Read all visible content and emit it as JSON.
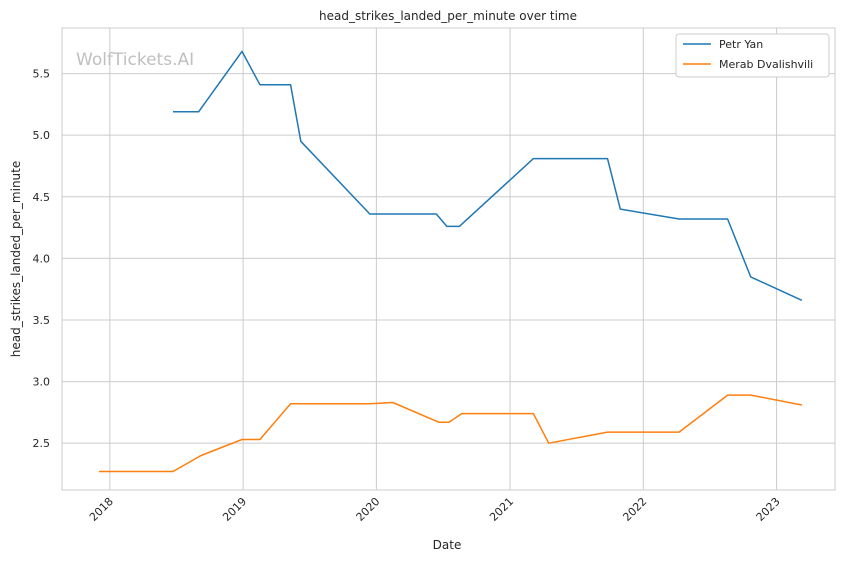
{
  "chart_data": {
    "type": "line",
    "title": "head_strikes_landed_per_minute over time",
    "xlabel": "Date",
    "ylabel": "head_strikes_landed_per_minute",
    "xlim": [
      "2017-08-23",
      "2023-06-10"
    ],
    "ylim": [
      2.12,
      5.87
    ],
    "xticks": [
      "2018",
      "2019",
      "2020",
      "2021",
      "2022",
      "2023"
    ],
    "yticks": [
      "2.5",
      "3.0",
      "3.5",
      "4.0",
      "4.5",
      "5.0",
      "5.5"
    ],
    "grid": true,
    "legend_position": "top-right",
    "watermark": "WolfTickets.AI",
    "series": [
      {
        "name": "Petr Yan",
        "color": "#1f77b4",
        "points": [
          [
            "2018-06-23",
            5.19
          ],
          [
            "2018-09-01",
            5.19
          ],
          [
            "2018-12-29",
            5.68
          ],
          [
            "2019-02-16",
            5.41
          ],
          [
            "2019-05-11",
            5.41
          ],
          [
            "2019-06-08",
            4.95
          ],
          [
            "2019-12-14",
            4.36
          ],
          [
            "2020-06-13",
            4.36
          ],
          [
            "2020-07-12",
            4.26
          ],
          [
            "2020-08-15",
            4.26
          ],
          [
            "2021-03-06",
            4.81
          ],
          [
            "2021-09-25",
            4.81
          ],
          [
            "2021-10-30",
            4.4
          ],
          [
            "2022-04-09",
            4.32
          ],
          [
            "2022-08-20",
            4.32
          ],
          [
            "2022-10-22",
            3.85
          ],
          [
            "2023-03-11",
            3.66
          ]
        ]
      },
      {
        "name": "Merab Dvalishvili",
        "color": "#ff7f0e",
        "points": [
          [
            "2017-12-02",
            2.27
          ],
          [
            "2018-06-23",
            2.27
          ],
          [
            "2018-09-08",
            2.4
          ],
          [
            "2018-12-29",
            2.53
          ],
          [
            "2019-02-16",
            2.53
          ],
          [
            "2019-05-11",
            2.82
          ],
          [
            "2019-12-14",
            2.82
          ],
          [
            "2020-02-15",
            2.83
          ],
          [
            "2020-06-20",
            2.67
          ],
          [
            "2020-07-18",
            2.67
          ],
          [
            "2020-08-22",
            2.74
          ],
          [
            "2021-03-06",
            2.74
          ],
          [
            "2021-04-17",
            2.5
          ],
          [
            "2021-09-25",
            2.59
          ],
          [
            "2022-04-09",
            2.59
          ],
          [
            "2022-08-20",
            2.89
          ],
          [
            "2022-10-22",
            2.89
          ],
          [
            "2023-03-11",
            2.81
          ]
        ]
      }
    ]
  }
}
